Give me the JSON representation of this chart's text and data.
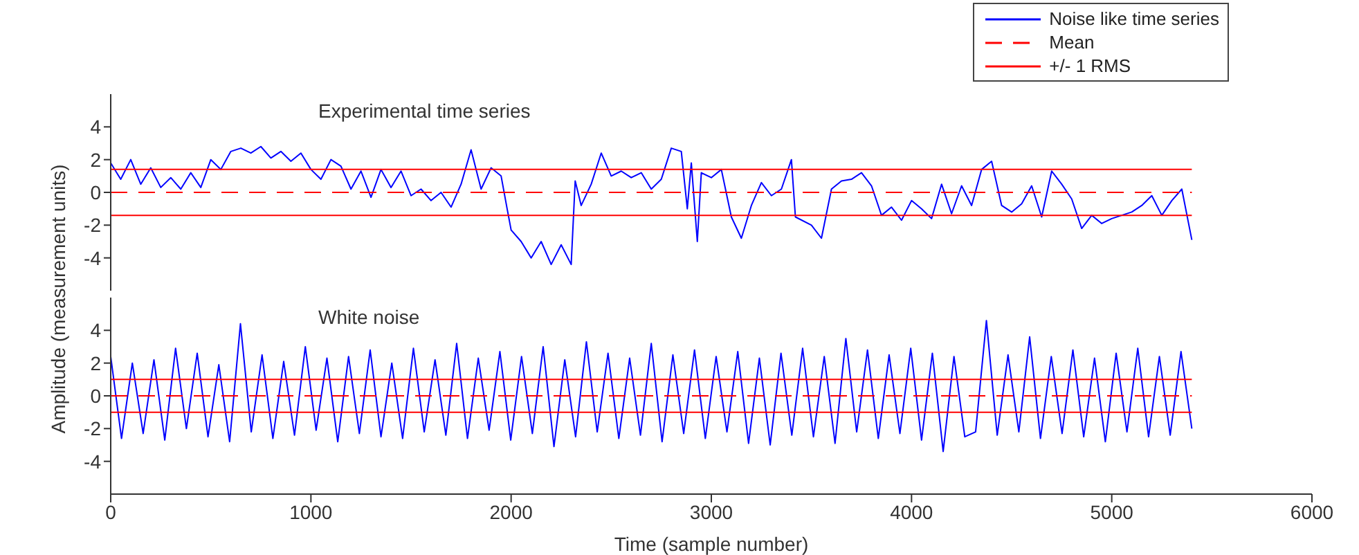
{
  "chart_data": [
    {
      "type": "line",
      "title": "Experimental time series",
      "xlim": [
        0,
        6000
      ],
      "xticks": [
        0,
        1000,
        2000,
        3000,
        4000,
        5000,
        6000
      ],
      "ylim": [
        -6,
        6
      ],
      "yticks": [
        -4,
        -2,
        0,
        2,
        4
      ],
      "tick_labels": "y",
      "legend": "top right",
      "series": [
        {
          "name": "Noise like time series",
          "color": "#0000ff",
          "line_style": "solid",
          "x": [
            0,
            50,
            100,
            150,
            200,
            250,
            300,
            350,
            400,
            450,
            500,
            550,
            600,
            650,
            700,
            750,
            800,
            850,
            900,
            950,
            1000,
            1050,
            1100,
            1150,
            1200,
            1250,
            1300,
            1350,
            1400,
            1450,
            1500,
            1550,
            1600,
            1650,
            1700,
            1750,
            1800,
            1850,
            1900,
            1950,
            1980,
            2000,
            2050,
            2100,
            2150,
            2200,
            2250,
            2300,
            2320,
            2350,
            2400,
            2450,
            2500,
            2550,
            2600,
            2650,
            2700,
            2750,
            2800,
            2850,
            2880,
            2900,
            2930,
            2950,
            3000,
            3050,
            3100,
            3150,
            3200,
            3250,
            3300,
            3350,
            3400,
            3420,
            3500,
            3550,
            3600,
            3650,
            3700,
            3750,
            3800,
            3850,
            3900,
            3950,
            4000,
            4050,
            4100,
            4150,
            4200,
            4250,
            4300,
            4350,
            4400,
            4450,
            4500,
            4550,
            4600,
            4650,
            4700,
            4750,
            4800,
            4850,
            4900,
            4950,
            5000,
            5050,
            5100,
            5150,
            5200,
            5250,
            5300,
            5350,
            5400
          ],
          "values": [
            1.8,
            0.8,
            2.0,
            0.5,
            1.5,
            0.3,
            0.9,
            0.2,
            1.2,
            0.3,
            2.0,
            1.4,
            2.5,
            2.7,
            2.4,
            2.8,
            2.1,
            2.5,
            1.9,
            2.4,
            1.4,
            0.8,
            2.0,
            1.6,
            0.2,
            1.3,
            -0.3,
            1.4,
            0.3,
            1.3,
            -0.2,
            0.2,
            -0.5,
            0.0,
            -0.9,
            0.5,
            2.6,
            0.2,
            1.5,
            1.0,
            -1.0,
            -2.3,
            -3.0,
            -4.0,
            -3.0,
            -4.4,
            -3.2,
            -4.4,
            0.7,
            -0.8,
            0.5,
            2.4,
            1.0,
            1.3,
            0.9,
            1.2,
            0.2,
            0.8,
            2.7,
            2.5,
            -1.0,
            1.8,
            -3.0,
            1.2,
            0.9,
            1.4,
            -1.5,
            -2.8,
            -0.8,
            0.6,
            -0.2,
            0.2,
            2.0,
            -1.5,
            -2.0,
            -2.8,
            0.2,
            0.7,
            0.8,
            1.2,
            0.4,
            -1.4,
            -0.9,
            -1.7,
            -0.5,
            -1.0,
            -1.6,
            0.5,
            -1.3,
            0.4,
            -0.8,
            1.4,
            1.9,
            -0.8,
            -1.2,
            -0.7,
            0.4,
            -1.5,
            1.3,
            0.5,
            -0.4,
            -2.2,
            -1.4,
            -1.9,
            -1.6,
            -1.4,
            -1.2,
            -0.8,
            -0.2,
            -1.4,
            -0.5,
            0.2,
            -2.9
          ]
        },
        {
          "name": "Mean",
          "color": "#ff0000",
          "line_style": "dashed",
          "x": [
            0,
            5400
          ],
          "values": [
            0,
            0
          ]
        },
        {
          "name": "+/- 1 RMS",
          "color": "#ff0000",
          "line_style": "solid",
          "x": [
            0,
            5400
          ],
          "values": [
            1.4,
            1.4
          ]
        },
        {
          "color": "#ff0000",
          "line_style": "solid",
          "x": [
            0,
            5400
          ],
          "values": [
            -1.4,
            -1.4
          ]
        }
      ]
    },
    {
      "type": "line",
      "title": "White noise",
      "xlabel": "Time (sample number)",
      "ylabel": "Amplitude (measurement units)",
      "xlim": [
        0,
        6000
      ],
      "xticks": [
        0,
        1000,
        2000,
        3000,
        4000,
        5000,
        6000
      ],
      "ylim": [
        -6,
        6
      ],
      "yticks": [
        -4,
        -2,
        0,
        2,
        4
      ],
      "series": [
        {
          "color": "#0000ff",
          "line_style": "solid",
          "x": [
            0,
            54,
            108,
            162,
            216,
            270,
            324,
            378,
            432,
            486,
            540,
            594,
            648,
            702,
            756,
            810,
            864,
            918,
            972,
            1026,
            1080,
            1134,
            1188,
            1242,
            1296,
            1350,
            1404,
            1458,
            1512,
            1566,
            1620,
            1674,
            1728,
            1782,
            1836,
            1890,
            1944,
            1998,
            2052,
            2106,
            2160,
            2214,
            2268,
            2322,
            2376,
            2430,
            2484,
            2538,
            2592,
            2646,
            2700,
            2754,
            2808,
            2862,
            2916,
            2970,
            3024,
            3078,
            3132,
            3186,
            3240,
            3294,
            3348,
            3402,
            3456,
            3510,
            3564,
            3618,
            3672,
            3726,
            3780,
            3834,
            3888,
            3942,
            3996,
            4050,
            4104,
            4158,
            4212,
            4266,
            4320,
            4374,
            4428,
            4482,
            4536,
            4590,
            4644,
            4698,
            4752,
            4806,
            4860,
            4914,
            4968,
            5022,
            5076,
            5130,
            5184,
            5238,
            5292,
            5346,
            5400
          ],
          "values": [
            2.4,
            -2.6,
            2.0,
            -2.3,
            2.2,
            -2.7,
            2.9,
            -2.0,
            2.6,
            -2.5,
            1.9,
            -2.8,
            4.4,
            -2.2,
            2.5,
            -2.6,
            2.1,
            -2.4,
            3.0,
            -2.1,
            2.3,
            -2.8,
            2.4,
            -2.3,
            2.8,
            -2.5,
            2.0,
            -2.6,
            2.9,
            -2.2,
            2.2,
            -2.4,
            3.2,
            -2.6,
            2.3,
            -2.1,
            2.7,
            -2.7,
            2.4,
            -2.3,
            3.0,
            -3.1,
            2.2,
            -2.5,
            3.3,
            -2.2,
            2.6,
            -2.6,
            2.3,
            -2.4,
            3.2,
            -2.8,
            2.5,
            -2.3,
            2.8,
            -2.6,
            2.4,
            -2.2,
            2.7,
            -2.9,
            2.3,
            -3.0,
            2.6,
            -2.4,
            2.9,
            -2.5,
            2.4,
            -2.9,
            3.5,
            -2.2,
            2.8,
            -2.6,
            2.5,
            -2.3,
            2.9,
            -2.7,
            2.6,
            -3.4,
            2.4,
            -2.5,
            -2.2,
            4.6,
            -2.4,
            2.5,
            -2.2,
            3.6,
            -2.6,
            2.4,
            -2.3,
            2.8,
            -2.5,
            2.3,
            -2.8,
            2.6,
            -2.2,
            2.9,
            -2.5,
            2.4,
            -2.4,
            2.7,
            -2.0
          ]
        },
        {
          "color": "#ff0000",
          "line_style": "dashed",
          "x": [
            0,
            5400
          ],
          "values": [
            0,
            0
          ]
        },
        {
          "color": "#ff0000",
          "line_style": "solid",
          "x": [
            0,
            5400
          ],
          "values": [
            1,
            1
          ]
        },
        {
          "color": "#ff0000",
          "line_style": "solid",
          "x": [
            0,
            5400
          ],
          "values": [
            -1,
            -1
          ]
        }
      ]
    }
  ]
}
